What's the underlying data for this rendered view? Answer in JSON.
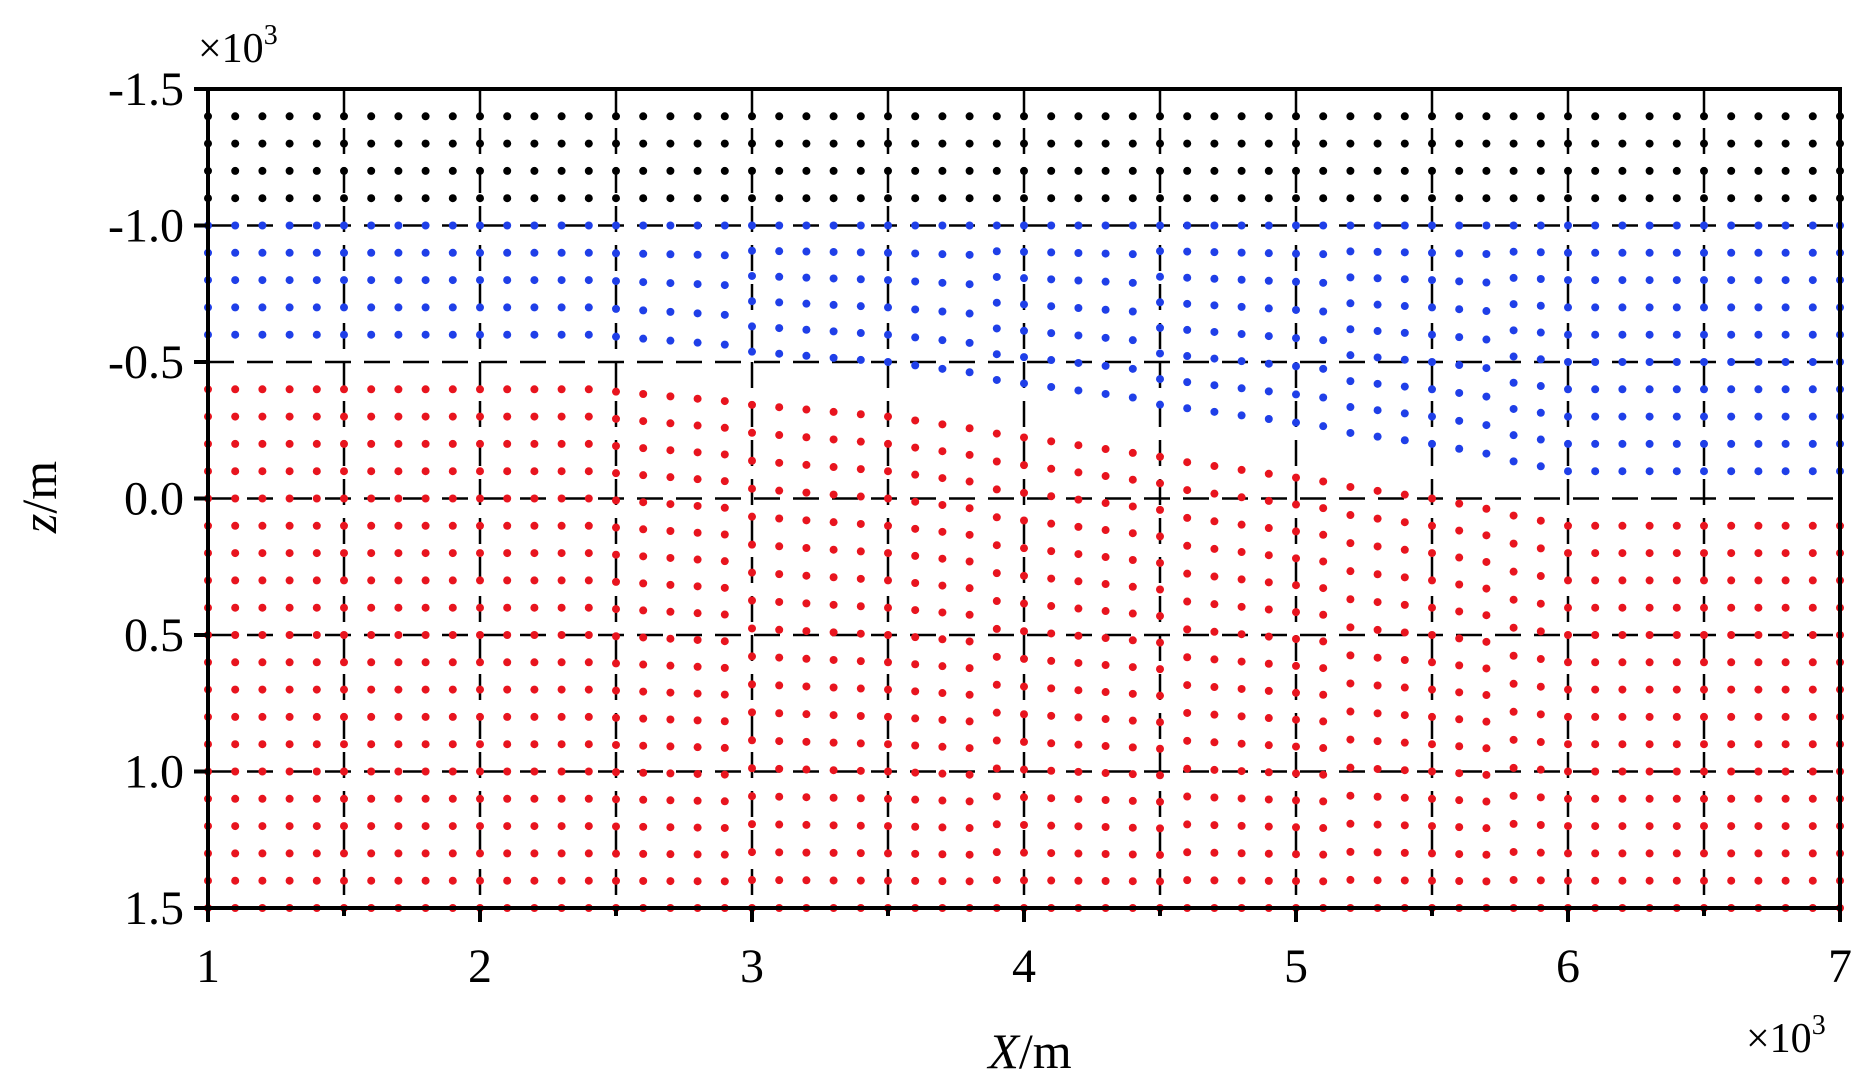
{
  "chart_data": {
    "type": "scatter",
    "xlabel_var": "X",
    "xlabel_unit": "/m",
    "ylabel_var": "z",
    "ylabel_unit": "/m",
    "x_multiplier": "×10",
    "x_multiplier_exp": "3",
    "y_multiplier": "×10",
    "y_multiplier_exp": "3",
    "xlim": [
      1,
      7
    ],
    "ylim": [
      -1.5,
      1.5
    ],
    "y_inverted": true,
    "x_ticks": [
      "1",
      "2",
      "3",
      "4",
      "5",
      "6",
      "7"
    ],
    "y_ticks": [
      "-1.5",
      "-1.0",
      "-0.5",
      "0.0",
      "0.5",
      "1.0",
      "1.5"
    ],
    "grid": "dashed",
    "x_spacing": 0.1,
    "z_spacing": 0.1,
    "series": [
      {
        "color": "#000000",
        "z_values": [
          -1.4,
          -1.3,
          -1.2,
          -1.1
        ],
        "x_range": [
          1.0,
          7.0
        ]
      },
      {
        "color": "#1f3fe8",
        "top_boundary": [
          [
            1.0,
            -1.0
          ],
          [
            7.0,
            -1.0
          ]
        ],
        "bottom_boundary": [
          [
            1.0,
            -0.5
          ],
          [
            2.4,
            -0.5
          ],
          [
            3.5,
            -0.4
          ],
          [
            4.5,
            -0.25
          ],
          [
            5.5,
            -0.1
          ],
          [
            6.0,
            0.0
          ],
          [
            7.0,
            0.0
          ]
        ]
      },
      {
        "color": "#e8141e",
        "top_boundary": [
          [
            1.0,
            -0.5
          ],
          [
            2.4,
            -0.5
          ],
          [
            3.5,
            -0.4
          ],
          [
            4.5,
            -0.25
          ],
          [
            5.5,
            -0.1
          ],
          [
            6.0,
            0.0
          ],
          [
            7.0,
            0.0
          ]
        ],
        "bottom_boundary": [
          [
            1.0,
            1.5
          ],
          [
            7.0,
            1.5
          ]
        ]
      }
    ]
  }
}
